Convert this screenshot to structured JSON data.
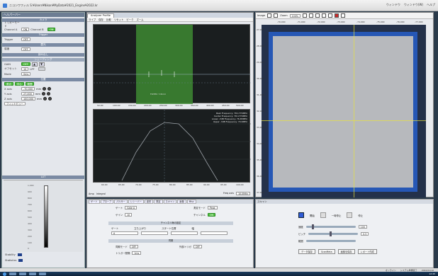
{
  "window": {
    "title_path": "ニコンワフィル S:¥Users¥Nikon¥MyData¥2021_Engine¥2022.kr",
    "menu_right": [
      "ウィンドウ",
      "ウィンドウ(W)",
      "ヘルプ"
    ]
  },
  "left_panel": {
    "header": "ヘルパーバー",
    "section_camera": "カメラ",
    "trigger_label": "トリガーモード",
    "row1": {
      "label": "Channel A",
      "value": "ON",
      "label2": "Channel B",
      "value2": "ON"
    },
    "section_trigger": "Trigger",
    "trigger_value": "OFF",
    "section_exposure": "露光",
    "exposure_label": "露光時間",
    "exposure_value": "OFF",
    "sensitivity_label": "感度",
    "sensitivity_value": "OFF",
    "section_readout": "読み出し",
    "section_shading": "シェーディング",
    "gain_label": "GAIN",
    "gain_value": "OFF",
    "offset_label": "オフセット",
    "offset_value": "10",
    "lpf_label": "LPF",
    "mode_label": "Mode",
    "mode_value": "0ms",
    "section_position": "位置",
    "pos_buttons": [
      "原点",
      "中心",
      "範囲"
    ],
    "axes": [
      {
        "label": "X axis",
        "value": "-70,000",
        "unit": "mm"
      },
      {
        "label": "Y axis",
        "value": "27,000",
        "unit": "mm"
      },
      {
        "label": "Z axis",
        "value": "100,000",
        "unit": "mm"
      }
    ],
    "magnify_label": "フィットビュー",
    "lut_header": "LUT",
    "lut_ticks": [
      "1,000",
      "900",
      "800",
      "700",
      "600",
      "500",
      "400",
      "300",
      "200",
      "100",
      "0"
    ],
    "stats": [
      {
        "label": "Stability",
        "value": ""
      },
      {
        "label": "Statistics",
        "value": ""
      }
    ]
  },
  "middle_panel": {
    "tabs": [
      "Analyzer Profile"
    ],
    "toolbar": [
      "ライブ",
      "保存",
      "比較",
      "リセット",
      "ピーク",
      "ズーム"
    ],
    "top_plot": {
      "y_ticks": [
        "2.5",
        "2.0",
        "1.5",
        "1.0",
        "0.5",
        "0.0"
      ],
      "x_ticks": [
        "50.00",
        "100.00",
        "150.00",
        "200.00",
        "250.00",
        "300.00",
        "350.00",
        "400.00",
        "450.00",
        "500.00"
      ],
      "marker_text": "FWHM: 7.8mm"
    },
    "bottom_plot": {
      "legend": [
        "Peak Frequency: 78.1770MHz",
        "Center Frequency: 78.1770MHz",
        "Lower -3dB Frequency: 76.65MHz",
        "Upper -3dB Frequency: 79.6MHz"
      ],
      "y_ticks": [
        "0",
        "-10",
        "-20",
        "-30",
        "-40"
      ],
      "x_ticks": [
        "60.00",
        "65.00",
        "70.00",
        "75.00",
        "80.00",
        "85.00",
        "90.00",
        "95.00",
        "100.00"
      ]
    },
    "checks": [
      "Amp",
      "Integral"
    ],
    "freq_label": "Freq axis",
    "freq_value": "10.0MHz"
  },
  "mid_bottom": {
    "tabs": [
      "ゲート",
      "プローブ",
      "パルサー",
      "レシーバー",
      "波形",
      "測定",
      "スキャン",
      "画像",
      "Misc"
    ],
    "gate_label": "ゲート",
    "gate_value": "Gate A",
    "mode_label": "測定モード",
    "mode_value": "Peak",
    "gain_label": "ゲイン",
    "gain_value": "10",
    "channel_label": "チャンネル",
    "channel_value": "ON",
    "table_title": "チャンネル毎の設定",
    "table_headers": [
      "ゲート",
      "立ち上がり",
      "スタート位置",
      "幅"
    ],
    "table_row": [
      "A",
      "",
      "",
      ""
    ],
    "section2": "同期",
    "sync_label": "同期モード",
    "sync_value": "OFF",
    "ext_label": "外部トリガ",
    "ext_value": "OFF",
    "interval_label": "トリガー間隔",
    "interval_value": "1ms"
  },
  "right_panel": {
    "view_label": "Image",
    "zoom_label": "Zoom",
    "zoom_value": "100%",
    "x_ticks": [
      "-70,000",
      "-71,000",
      "-72,000",
      "-73,000",
      "-74,000",
      "-75,000",
      "-76,000",
      "-77,000"
    ],
    "y_ticks": [
      "27,000",
      "28,000",
      "29,000",
      "30,000",
      "31,000",
      "32,000",
      "33,000",
      "34,000",
      "35,000",
      "36,000",
      "37,000"
    ]
  },
  "right_bottom": {
    "header": "スキャン",
    "btn_start": "開始",
    "btn_pause": "一時停止",
    "btn_stop": "停止",
    "speed_label": "速度",
    "speed_value": "100",
    "pitch_label": "ピッチ",
    "pitch_value": "0.5",
    "range_label": "範囲",
    "buttons": [
      "データ保存",
      "ScanMeta",
      "画像を保存",
      "レポート作成"
    ]
  },
  "status": [
    "オンライン",
    "システム準備完了",
    "2022/01/10"
  ],
  "taskbar": {
    "clock": "12:45"
  }
}
